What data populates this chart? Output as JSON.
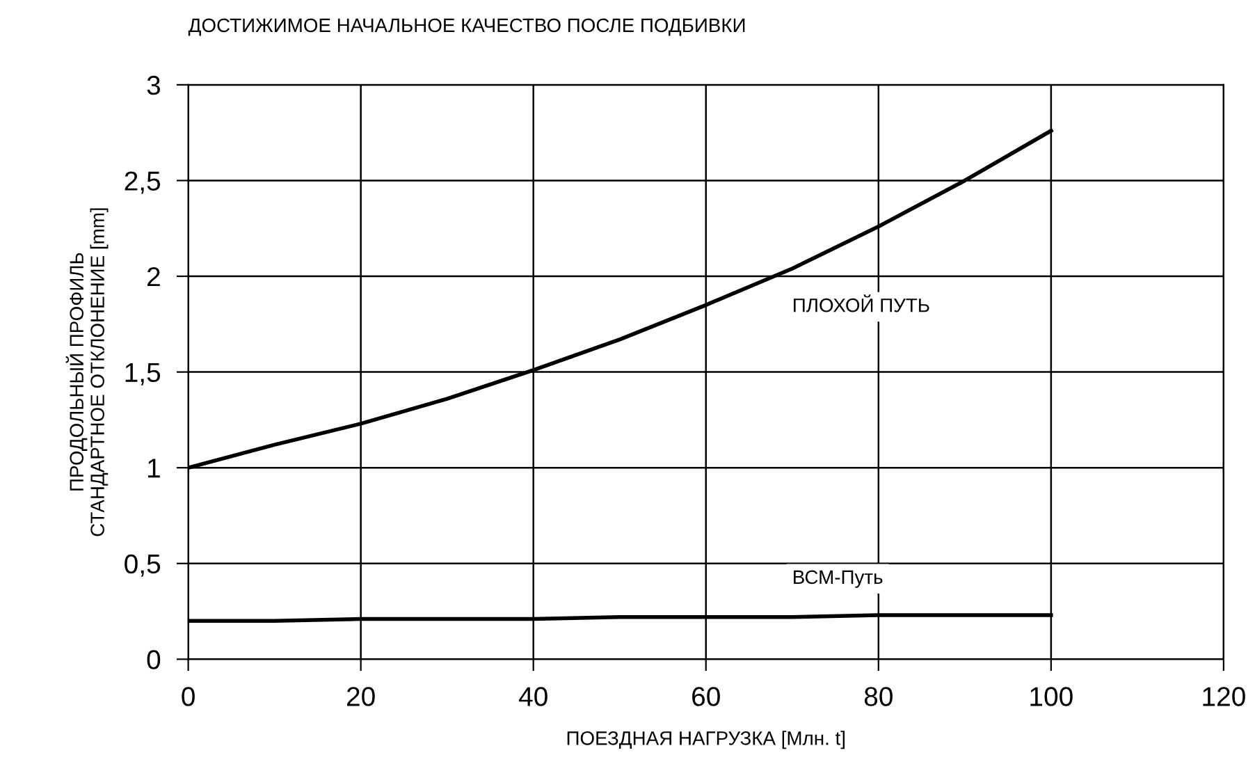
{
  "chart_data": {
    "type": "line",
    "title": "ДОСТИЖИМОЕ НАЧАЛЬНОЕ КАЧЕСТВО ПОСЛЕ ПОДБИВКИ",
    "xlabel": "ПОЕЗДНАЯ НАГРУЗКА [Млн. t]",
    "ylabel": "ПРОДОЛЬНЫЙ ПРОФИЛЬ\nСТАНДАРТНОЕ ОТКЛОНЕНИЕ [mm]",
    "x": [
      0,
      10,
      20,
      30,
      40,
      50,
      60,
      70,
      80,
      90,
      100
    ],
    "series": [
      {
        "name": "ПЛОХОЙ ПУТЬ",
        "color": "#000000",
        "values": [
          1.0,
          1.12,
          1.23,
          1.36,
          1.51,
          1.67,
          1.85,
          2.04,
          2.26,
          2.5,
          2.76
        ]
      },
      {
        "name": "ВСМ-Путь",
        "color": "#000000",
        "values": [
          0.2,
          0.2,
          0.21,
          0.21,
          0.21,
          0.22,
          0.22,
          0.22,
          0.23,
          0.23,
          0.23
        ]
      }
    ],
    "xlim": [
      0,
      120
    ],
    "xticks": [
      0,
      20,
      40,
      60,
      80,
      100,
      120
    ],
    "ylim": [
      0,
      3
    ],
    "yticks": [
      0,
      {
        "value": 0.5,
        "label": "0,5"
      },
      1,
      {
        "value": 1.5,
        "label": "1,5"
      },
      2,
      {
        "value": 2.5,
        "label": "2,5"
      },
      3
    ],
    "grid": true,
    "legend": false,
    "marker": "none",
    "line_style": "solid"
  }
}
